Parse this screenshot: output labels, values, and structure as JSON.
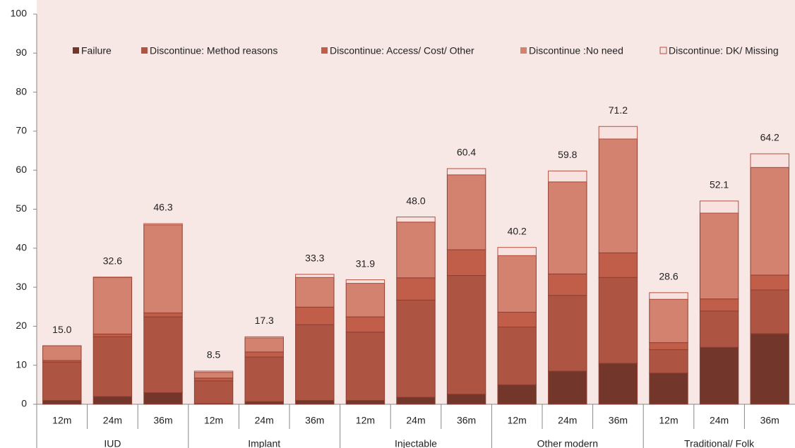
{
  "chart_data": {
    "type": "stacked-bar",
    "groups": [
      {
        "name": "IUD",
        "categories": [
          "12m",
          "24m",
          "36m"
        ]
      },
      {
        "name": "Implant",
        "categories": [
          "12m",
          "24m",
          "36m"
        ]
      },
      {
        "name": "Injectable",
        "categories": [
          "12m",
          "24m",
          "36m"
        ]
      },
      {
        "name": "Other modern",
        "categories": [
          "12m",
          "24m",
          "36m"
        ]
      },
      {
        "name": "Traditional/ Folk",
        "categories": [
          "12m",
          "24m",
          "36m"
        ]
      }
    ],
    "series": [
      {
        "name": "Failure",
        "color": "#73362b",
        "values": [
          1.0,
          2.0,
          3.0,
          0.2,
          0.7,
          1.0,
          1.0,
          1.8,
          2.6,
          5.0,
          8.5,
          10.5,
          8.0,
          14.6,
          18.1
        ]
      },
      {
        "name": "Discontinue: Method reasons",
        "color": "#ae5442",
        "values": [
          9.8,
          15.3,
          19.4,
          5.8,
          11.4,
          19.4,
          17.5,
          24.9,
          30.4,
          14.8,
          19.4,
          22.0,
          6.0,
          9.3,
          11.2
        ]
      },
      {
        "name": "Discontinue: Access/ Cost/ Other",
        "color": "#c15e4a",
        "values": [
          0.4,
          0.7,
          1.0,
          0.7,
          1.3,
          4.5,
          3.9,
          5.7,
          6.6,
          3.8,
          5.5,
          6.3,
          1.8,
          3.1,
          3.8
        ]
      },
      {
        "name": "Discontinue :No need",
        "color": "#d2826f",
        "values": [
          3.8,
          14.5,
          22.6,
          1.5,
          3.6,
          7.6,
          8.6,
          14.3,
          19.2,
          14.5,
          23.6,
          29.2,
          11.1,
          22.0,
          27.6
        ]
      },
      {
        "name": "Discontinue: DK/ Missing",
        "color": "#f8e2df",
        "values": [
          0.0,
          0.1,
          0.3,
          0.3,
          0.3,
          0.8,
          0.9,
          1.3,
          1.6,
          2.1,
          2.8,
          3.2,
          1.7,
          3.1,
          3.5
        ]
      }
    ],
    "totals": {
      "values": [
        15,
        32.6,
        46.3,
        8.5,
        17.3,
        33.3,
        31.9,
        48,
        60.4,
        40.2,
        59.8,
        71.2,
        28.6,
        52.1,
        64.2
      ],
      "value_labels": [
        "15.0",
        "32.6",
        "46.3",
        "8.5",
        "17.3",
        "33.3",
        "31.9",
        "48.0",
        "60.4",
        "40.2",
        "59.8",
        "71.2",
        "28.6",
        "52.1",
        "64.2"
      ]
    },
    "ylim": [
      0,
      100
    ],
    "yticks": [
      0,
      10,
      20,
      30,
      40,
      50,
      60,
      70,
      80,
      90,
      100
    ],
    "grid": false
  }
}
